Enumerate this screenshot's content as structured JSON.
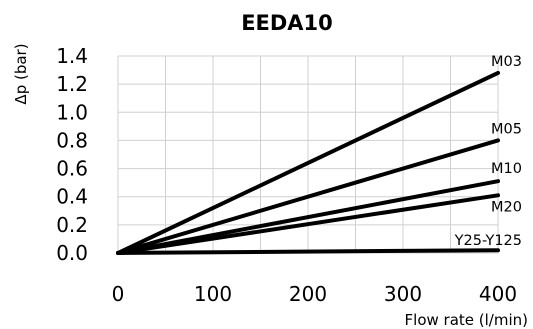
{
  "chart_data": {
    "type": "line",
    "title": "EEDA10",
    "xlabel": "Flow rate (l/min)",
    "ylabel": "Δp (bar)",
    "xlim": [
      0,
      400
    ],
    "ylim": [
      0,
      1.4
    ],
    "x_ticks": [
      "0",
      "100",
      "200",
      "300",
      "400"
    ],
    "y_ticks": [
      "0.0",
      "0.2",
      "0.4",
      "0.6",
      "0.8",
      "1.0",
      "1.2",
      "1.4"
    ],
    "grid": true,
    "line_color": "#000000",
    "grid_color": "#d0d0d0",
    "series": [
      {
        "name": "M03",
        "x": [
          0,
          400
        ],
        "y": [
          0,
          1.28
        ]
      },
      {
        "name": "M05",
        "x": [
          0,
          400
        ],
        "y": [
          0,
          0.8
        ]
      },
      {
        "name": "M10",
        "x": [
          0,
          400
        ],
        "y": [
          0,
          0.51
        ]
      },
      {
        "name": "M20",
        "x": [
          0,
          400
        ],
        "y": [
          0,
          0.41
        ]
      },
      {
        "name": "Y25-Y125",
        "x": [
          0,
          400
        ],
        "y": [
          0,
          0.02
        ]
      }
    ]
  }
}
